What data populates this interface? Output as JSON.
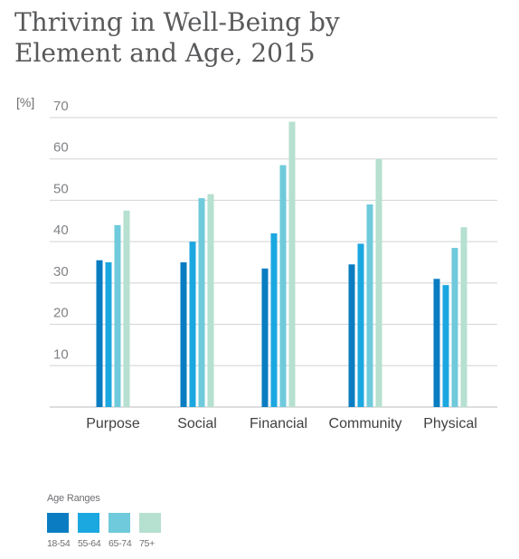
{
  "title_line1": "Thriving in Well-Being by",
  "title_line2": "Element and Age, 2015",
  "chart_data": {
    "type": "bar",
    "title": "Thriving in Well-Being by Element and Age, 2015",
    "ylabel": "[%]",
    "xlabel": "",
    "categories": [
      "Purpose",
      "Social",
      "Financial",
      "Community",
      "Physical"
    ],
    "ylim": [
      0,
      70
    ],
    "yticks": [
      10,
      20,
      30,
      40,
      50,
      60,
      70
    ],
    "grid": true,
    "legend_title": "Age Ranges",
    "legend_position": "bottom-left",
    "series": [
      {
        "name": "18-54",
        "color": "#0a7dc2",
        "values": [
          35.5,
          35,
          33.5,
          34.5,
          31
        ]
      },
      {
        "name": "55-64",
        "color": "#1ba7e0",
        "values": [
          35,
          40,
          42,
          39.5,
          29.5
        ]
      },
      {
        "name": "65-74",
        "color": "#6fcadb",
        "values": [
          44,
          50.5,
          58.5,
          49,
          38.5
        ]
      },
      {
        "name": "75+",
        "color": "#b6e0cf",
        "values": [
          47.5,
          51.5,
          69,
          60,
          43.5
        ]
      }
    ]
  }
}
